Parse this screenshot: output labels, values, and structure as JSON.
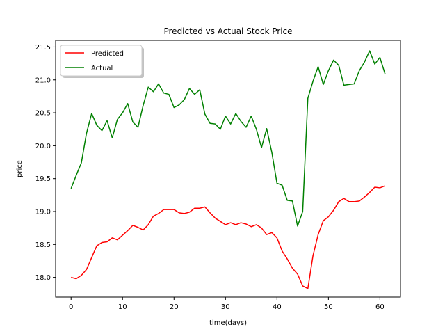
{
  "chart_data": {
    "type": "line",
    "title": "Predicted vs Actual Stock Price",
    "xlabel": "time(days)",
    "ylabel": "price",
    "xlim": [
      -3,
      64
    ],
    "ylim": [
      17.7,
      21.6
    ],
    "xticks": [
      0,
      10,
      20,
      30,
      40,
      50,
      60
    ],
    "yticks": [
      18.0,
      18.5,
      19.0,
      19.5,
      20.0,
      20.5,
      21.0,
      21.5
    ],
    "ytick_labels": [
      "18.0",
      "18.5",
      "19.0",
      "19.5",
      "20.0",
      "20.5",
      "21.0",
      "21.5"
    ],
    "grid": false,
    "legend_position": "top-left",
    "x": [
      0,
      1,
      2,
      3,
      4,
      5,
      6,
      7,
      8,
      9,
      10,
      11,
      12,
      13,
      14,
      15,
      16,
      17,
      18,
      19,
      20,
      21,
      22,
      23,
      24,
      25,
      26,
      27,
      28,
      29,
      30,
      31,
      32,
      33,
      34,
      35,
      36,
      37,
      38,
      39,
      40,
      41,
      42,
      43,
      44,
      45,
      46,
      47,
      48,
      49,
      50,
      51,
      52,
      53,
      54,
      55,
      56,
      57,
      58,
      59,
      60,
      61
    ],
    "series": [
      {
        "name": "Predicted",
        "color": "#ff0000",
        "values": [
          18.0,
          17.98,
          18.03,
          18.12,
          18.3,
          18.48,
          18.53,
          18.54,
          18.6,
          18.57,
          18.64,
          18.71,
          18.79,
          18.76,
          18.72,
          18.8,
          18.93,
          18.97,
          19.03,
          19.03,
          19.03,
          18.98,
          18.97,
          18.99,
          19.05,
          19.05,
          19.07,
          18.98,
          18.9,
          18.85,
          18.8,
          18.83,
          18.8,
          18.83,
          18.81,
          18.77,
          18.8,
          18.75,
          18.65,
          18.68,
          18.6,
          18.4,
          18.28,
          18.14,
          18.05,
          17.87,
          17.83,
          18.33,
          18.65,
          18.86,
          18.92,
          19.02,
          19.15,
          19.2,
          19.15,
          19.15,
          19.16,
          19.22,
          19.29,
          19.37,
          19.36,
          19.39
        ]
      },
      {
        "name": "Actual",
        "color": "#008000",
        "values": [
          19.35,
          19.55,
          19.74,
          20.19,
          20.49,
          20.31,
          20.23,
          20.38,
          20.12,
          20.4,
          20.5,
          20.64,
          20.36,
          20.28,
          20.61,
          20.89,
          20.82,
          20.94,
          20.8,
          20.78,
          20.58,
          20.62,
          20.7,
          20.87,
          20.78,
          20.85,
          20.48,
          20.34,
          20.33,
          20.25,
          20.45,
          20.33,
          20.49,
          20.37,
          20.28,
          20.45,
          20.25,
          19.97,
          20.26,
          19.9,
          19.43,
          19.4,
          19.17,
          19.16,
          18.78,
          19.0,
          20.72,
          20.98,
          21.2,
          20.93,
          21.14,
          21.3,
          21.22,
          20.92,
          20.93,
          20.94,
          21.14,
          21.27,
          21.44,
          21.24,
          21.34,
          21.09
        ]
      }
    ]
  }
}
